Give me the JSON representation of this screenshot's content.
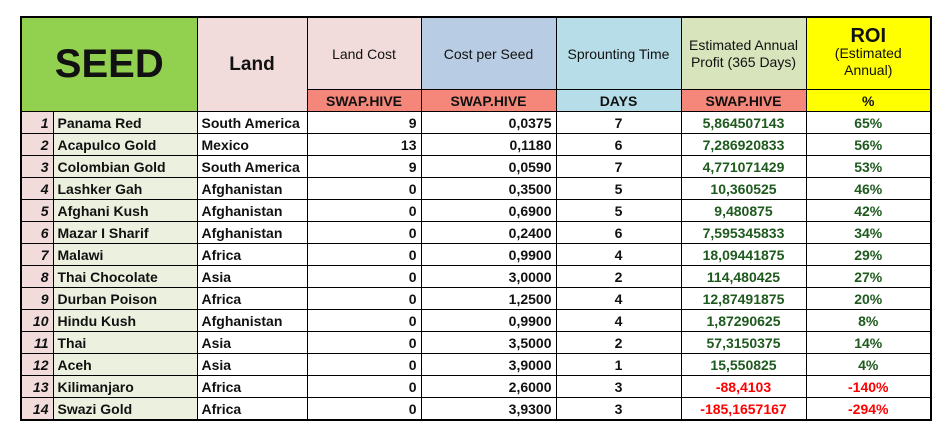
{
  "header": {
    "seed": "SEED",
    "land": "Land",
    "land_cost": "Land Cost",
    "cost_per_seed": "Cost per Seed",
    "sprouting": "Sprounting Time",
    "profit": "Estimated Annual Profit (365 Days)",
    "roi_title": "ROI",
    "roi_sub": "(Estimated Annual)"
  },
  "units": {
    "land_cost": "SWAP.HIVE",
    "cost_per_seed": "SWAP.HIVE",
    "sprouting": "DAYS",
    "profit": "SWAP.HIVE",
    "roi": "%"
  },
  "rows": [
    [
      "1",
      "Panama Red",
      "South America",
      "9",
      "0,0375",
      "7",
      "5,864507143",
      "65%"
    ],
    [
      "2",
      "Acapulco Gold",
      "Mexico",
      "13",
      "0,1180",
      "6",
      "7,286920833",
      "56%"
    ],
    [
      "3",
      "Colombian Gold",
      "South America",
      "9",
      "0,0590",
      "7",
      "4,771071429",
      "53%"
    ],
    [
      "4",
      "Lashker Gah",
      "Afghanistan",
      "0",
      "0,3500",
      "5",
      "10,360525",
      "46%"
    ],
    [
      "5",
      "Afghani Kush",
      "Afghanistan",
      "0",
      "0,6900",
      "5",
      "9,480875",
      "42%"
    ],
    [
      "6",
      "Mazar I Sharif",
      "Afghanistan",
      "0",
      "0,2400",
      "6",
      "7,595345833",
      "34%"
    ],
    [
      "7",
      "Malawi",
      "Africa",
      "0",
      "0,9900",
      "4",
      "18,09441875",
      "29%"
    ],
    [
      "8",
      "Thai Chocolate",
      "Asia",
      "0",
      "3,0000",
      "2",
      "114,480425",
      "27%"
    ],
    [
      "9",
      "Durban Poison",
      "Africa",
      "0",
      "1,2500",
      "4",
      "12,87491875",
      "20%"
    ],
    [
      "10",
      "Hindu Kush",
      "Afghanistan",
      "0",
      "0,9900",
      "4",
      "1,87290625",
      "8%"
    ],
    [
      "11",
      "Thai",
      "Asia",
      "0",
      "3,5000",
      "2",
      "57,3150375",
      "14%"
    ],
    [
      "12",
      "Aceh",
      "Asia",
      "0",
      "3,9000",
      "1",
      "15,550825",
      "4%"
    ],
    [
      "13",
      "Kilimanjaro",
      "Africa",
      "0",
      "2,6000",
      "3",
      "-88,4103",
      "-140%"
    ],
    [
      "14",
      "Swazi Gold",
      "Africa",
      "0",
      "3,9300",
      "3",
      "-185,1657167",
      "-294%"
    ]
  ]
}
